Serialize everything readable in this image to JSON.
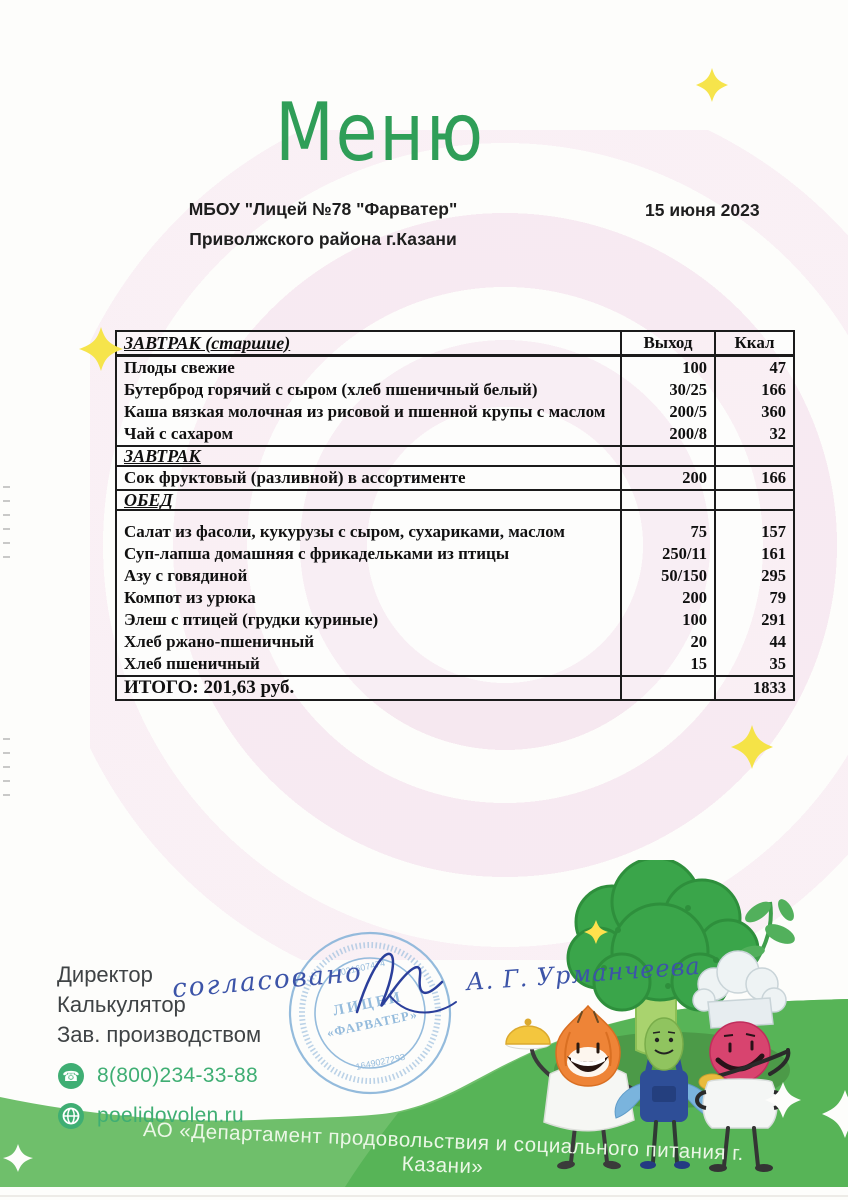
{
  "title": "Меню",
  "header": {
    "school_line1": "МБОУ \"Лицей №78 \"Фарватер\"",
    "school_line2": "Приволжского района г.Казани",
    "date": "15 июня 2023"
  },
  "table": {
    "columns": {
      "output": "Выход",
      "kcal": "Ккал"
    },
    "rows": [
      {
        "type": "header",
        "name": "ЗАВТРАК (старшие)",
        "output": "Выход",
        "kcal": "Ккал"
      },
      {
        "type": "item",
        "name": "Плоды свежие",
        "output": "100",
        "kcal": "47"
      },
      {
        "type": "item",
        "name": "Бутерброд горячий с сыром (хлеб пшеничный белый)",
        "output": "30/25",
        "kcal": "166"
      },
      {
        "type": "item",
        "name": "Каша вязкая молочная из рисовой и пшенной крупы с маслом",
        "output": "200/5",
        "kcal": "360"
      },
      {
        "type": "item",
        "name": "Чай с сахаром",
        "output": "200/8",
        "kcal": "32"
      },
      {
        "type": "section",
        "name": "ЗАВТРАК",
        "output": "",
        "kcal": ""
      },
      {
        "type": "item",
        "name": "Сок фруктовый (разливной) в ассортименте",
        "output": "200",
        "kcal": "166"
      },
      {
        "type": "section",
        "name": "ОБЕД",
        "output": "",
        "kcal": ""
      },
      {
        "type": "spacer",
        "name": "",
        "output": "",
        "kcal": ""
      },
      {
        "type": "item",
        "name": "Салат из фасоли, кукурузы с сыром, сухариками, маслом",
        "output": "75",
        "kcal": "157"
      },
      {
        "type": "item",
        "name": "Суп-лапша домашняя с фрикадельками из птицы",
        "output": "250/11",
        "kcal": "161"
      },
      {
        "type": "item",
        "name": "Азу с говядиной",
        "output": "50/150",
        "kcal": "295"
      },
      {
        "type": "item",
        "name": "Компот из урюка",
        "output": "200",
        "kcal": "79"
      },
      {
        "type": "item",
        "name": "Элеш с птицей (грудки куриные)",
        "output": "100",
        "kcal": "291"
      },
      {
        "type": "item",
        "name": "Хлеб ржано-пшеничный",
        "output": "20",
        "kcal": "44"
      },
      {
        "type": "item",
        "name": "Хлеб пшеничный",
        "output": "15",
        "kcal": "35"
      },
      {
        "type": "total",
        "name": "ИТОГО: 201,63 руб.",
        "output": "",
        "kcal": "1833"
      }
    ]
  },
  "footer": {
    "roles": [
      "Директор",
      "Калькулятор",
      "Зав. производством"
    ],
    "phone": "8(800)234-33-88",
    "website": "poelidovolen.ru",
    "banner": "АО «Департамент продовольствия и социального питания г. Казани»",
    "handwriting": {
      "approved": "согласовано",
      "signature_name": "А. Г. Урманчеева"
    },
    "stamp": {
      "center_line1": "ЛИЦЕЙ",
      "center_line2": "«ФАРВАТЕР»",
      "number_top": "1021607474",
      "number_bottom": "1649027293"
    }
  },
  "colors": {
    "brand_green": "#2f9e58",
    "contact_green": "#3fae73",
    "field_green": "#57b457",
    "band_green": "#6fbf6b",
    "stamp_blue": "#8cb6da",
    "ink_blue": "#3c54a8",
    "sparkle_yellow": "#f6e44b"
  }
}
